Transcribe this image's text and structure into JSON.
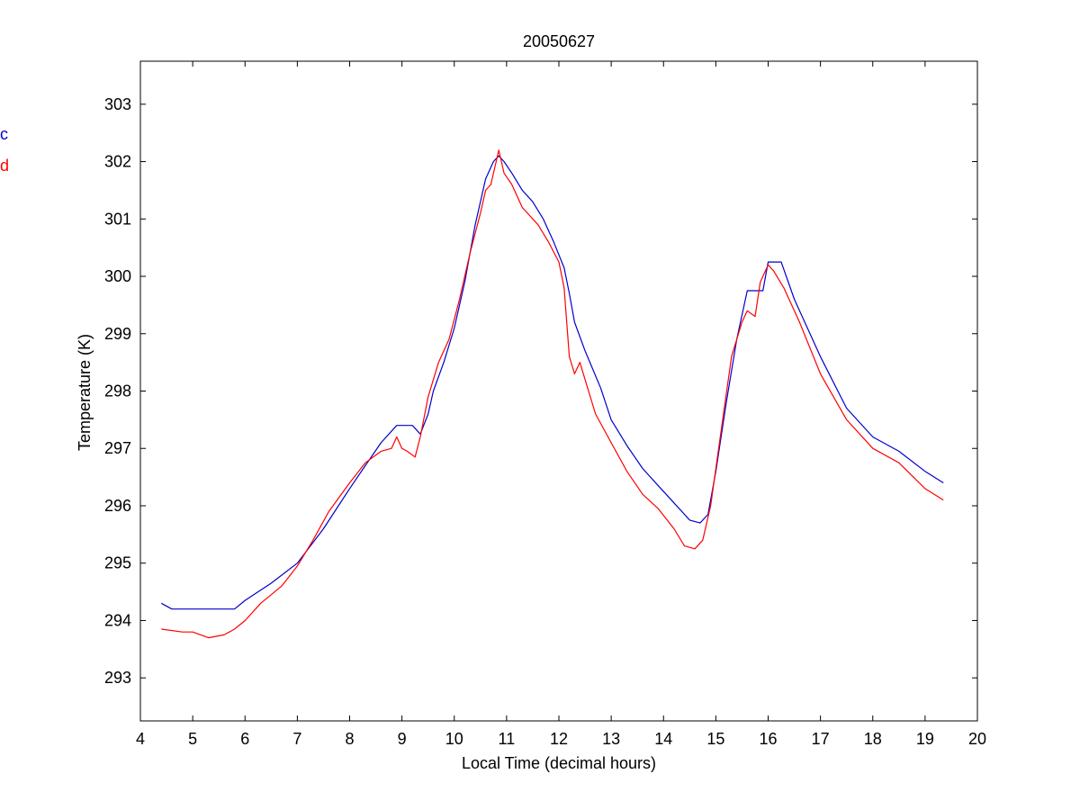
{
  "chart_data": {
    "type": "line",
    "title": "20050627",
    "xlabel": "Local Time (decimal hours)",
    "ylabel": "Temperature (K)",
    "xlim": [
      4,
      20
    ],
    "ylim": [
      292.25,
      303.75
    ],
    "xticks": [
      4,
      5,
      6,
      7,
      8,
      9,
      10,
      11,
      12,
      13,
      14,
      15,
      16,
      17,
      18,
      19,
      20
    ],
    "yticks": [
      293,
      294,
      295,
      296,
      297,
      298,
      299,
      300,
      301,
      302,
      303
    ],
    "grid": false,
    "legend_position": "left, clipped at figure edge",
    "series": [
      {
        "name": "c",
        "color": "#0000cc",
        "x": [
          4.4,
          4.6,
          5.0,
          5.5,
          5.8,
          6.0,
          6.5,
          7.0,
          7.5,
          8.0,
          8.3,
          8.6,
          8.9,
          9.2,
          9.35,
          9.5,
          9.6,
          9.8,
          10.0,
          10.2,
          10.4,
          10.6,
          10.75,
          10.85,
          10.95,
          11.1,
          11.3,
          11.5,
          11.7,
          11.9,
          12.1,
          12.2,
          12.3,
          12.5,
          12.8,
          13.0,
          13.3,
          13.6,
          13.9,
          14.2,
          14.5,
          14.7,
          14.85,
          15.0,
          15.2,
          15.4,
          15.6,
          15.9,
          16.0,
          16.25,
          16.5,
          17.0,
          17.5,
          18.0,
          18.5,
          19.0,
          19.35
        ],
        "y": [
          294.3,
          294.2,
          294.2,
          294.2,
          294.2,
          294.35,
          294.65,
          295.0,
          295.6,
          296.3,
          296.7,
          297.1,
          297.4,
          297.4,
          297.25,
          297.6,
          298.0,
          298.5,
          299.1,
          299.9,
          300.9,
          301.7,
          302.0,
          302.1,
          302.0,
          301.8,
          301.5,
          301.3,
          301.0,
          300.6,
          300.15,
          299.7,
          299.2,
          298.7,
          298.05,
          297.5,
          297.05,
          296.65,
          296.35,
          296.05,
          295.75,
          295.7,
          295.85,
          296.6,
          297.8,
          298.9,
          299.75,
          299.75,
          300.25,
          300.25,
          299.6,
          298.6,
          297.7,
          297.2,
          296.95,
          296.6,
          296.4
        ]
      },
      {
        "name": "d",
        "color": "#ff0000",
        "x": [
          4.4,
          4.8,
          5.0,
          5.3,
          5.6,
          5.8,
          6.0,
          6.3,
          6.7,
          7.0,
          7.3,
          7.6,
          8.0,
          8.3,
          8.6,
          8.8,
          8.9,
          9.0,
          9.1,
          9.25,
          9.35,
          9.5,
          9.7,
          9.9,
          10.1,
          10.3,
          10.5,
          10.6,
          10.7,
          10.8,
          10.85,
          10.95,
          11.1,
          11.3,
          11.6,
          11.8,
          12.0,
          12.1,
          12.2,
          12.3,
          12.4,
          12.5,
          12.7,
          13.0,
          13.3,
          13.6,
          13.9,
          14.2,
          14.4,
          14.6,
          14.75,
          14.9,
          15.1,
          15.3,
          15.5,
          15.6,
          15.75,
          15.85,
          16.0,
          16.1,
          16.3,
          16.6,
          17.0,
          17.5,
          18.0,
          18.5,
          19.0,
          19.35
        ],
        "y": [
          293.85,
          293.8,
          293.8,
          293.7,
          293.75,
          293.85,
          294.0,
          294.3,
          294.6,
          294.95,
          295.4,
          295.9,
          296.4,
          296.75,
          296.95,
          297.0,
          297.2,
          297.0,
          296.95,
          296.85,
          297.2,
          297.9,
          298.5,
          298.9,
          299.6,
          300.4,
          301.1,
          301.5,
          301.6,
          302.0,
          302.2,
          301.8,
          301.6,
          301.2,
          300.9,
          300.6,
          300.25,
          299.8,
          298.6,
          298.3,
          298.5,
          298.2,
          297.6,
          297.1,
          296.6,
          296.2,
          295.95,
          295.6,
          295.3,
          295.25,
          295.4,
          296.0,
          297.3,
          298.6,
          299.2,
          299.4,
          299.3,
          299.9,
          300.2,
          300.1,
          299.8,
          299.2,
          298.3,
          297.5,
          297.0,
          296.75,
          296.3,
          296.1
        ]
      }
    ]
  }
}
